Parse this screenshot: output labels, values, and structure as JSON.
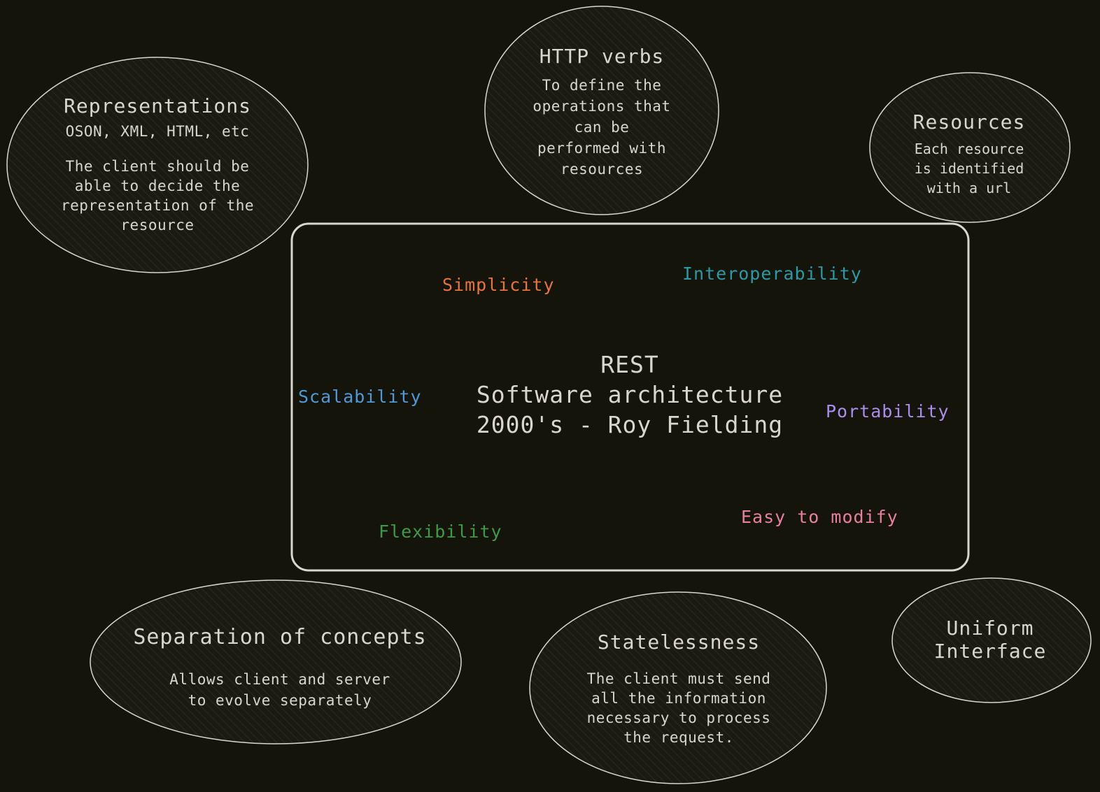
{
  "colors": {
    "background": "#15140a",
    "stroke": "#d9d6cc",
    "simplicity": "#e8743b",
    "interoperability": "#2a9aa6",
    "scalability": "#4e9ad8",
    "portability": "#a98ef0",
    "flexibility": "#3e9a46",
    "easy_to_modify": "#e87fa3"
  },
  "center": {
    "line1": "REST",
    "line2": "Software architecture",
    "line3": "2000's - Roy Fielding"
  },
  "qualities": {
    "simplicity": "Simplicity",
    "interoperability": "Interoperability",
    "scalability": "Scalability",
    "portability": "Portability",
    "flexibility": "Flexibility",
    "easy_to_modify": "Easy to modify"
  },
  "bubbles": {
    "representations": {
      "title": "Representations",
      "subtitle": "OSON, XML, HTML, etc",
      "body": "The client should be\nable to decide the\nrepresentation of the\nresource"
    },
    "http_verbs": {
      "title": "HTTP verbs",
      "body": "To define the\noperations that\ncan be\nperformed with\nresources"
    },
    "resources": {
      "title": "Resources",
      "body": "Each resource\nis identified\nwith a url"
    },
    "separation": {
      "title": "Separation of concepts",
      "body": "Allows client and server\nto evolve separately"
    },
    "statelessness": {
      "title": "Statelessness",
      "body": "The client must send\nall the information\nnecessary to process\nthe request."
    },
    "uniform_interface": {
      "title": "Uniform\nInterface"
    }
  }
}
